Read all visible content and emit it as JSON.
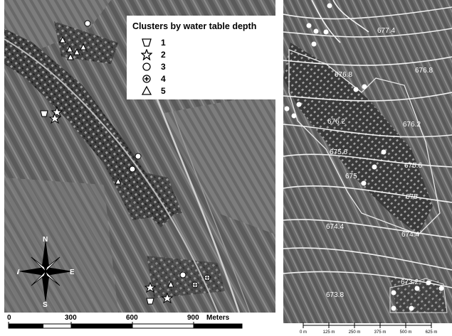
{
  "legend": {
    "title": "Clusters by water table depth",
    "items": [
      {
        "symbol": "trapezoid",
        "label": "1"
      },
      {
        "symbol": "star",
        "label": "2"
      },
      {
        "symbol": "circle",
        "label": "3"
      },
      {
        "symbol": "cross-circle",
        "label": "4"
      },
      {
        "symbol": "triangle",
        "label": "5"
      }
    ]
  },
  "compass": {
    "n": "N",
    "s": "S",
    "e": "E",
    "w": "W"
  },
  "left_scale": {
    "ticks": [
      "0",
      "300",
      "600",
      "900"
    ],
    "unit": "Meters"
  },
  "contours": {
    "labels": [
      "677.4",
      "676.8",
      "676.2",
      "675.6",
      "675",
      "674.4",
      "673.8",
      "675.6",
      "676.2",
      "676.8",
      "675",
      "674.4",
      "673.2"
    ]
  },
  "right_scale": {
    "ticks": [
      "0 m",
      "125 m",
      "250 m",
      "375 m",
      "500 m",
      "625 m"
    ]
  },
  "colors": {
    "imagery_dark": "#3d3d3d",
    "imagery_light": "#8a8a8a",
    "contour": "#f2f2f2",
    "symbol_fill": "#ffffff"
  }
}
